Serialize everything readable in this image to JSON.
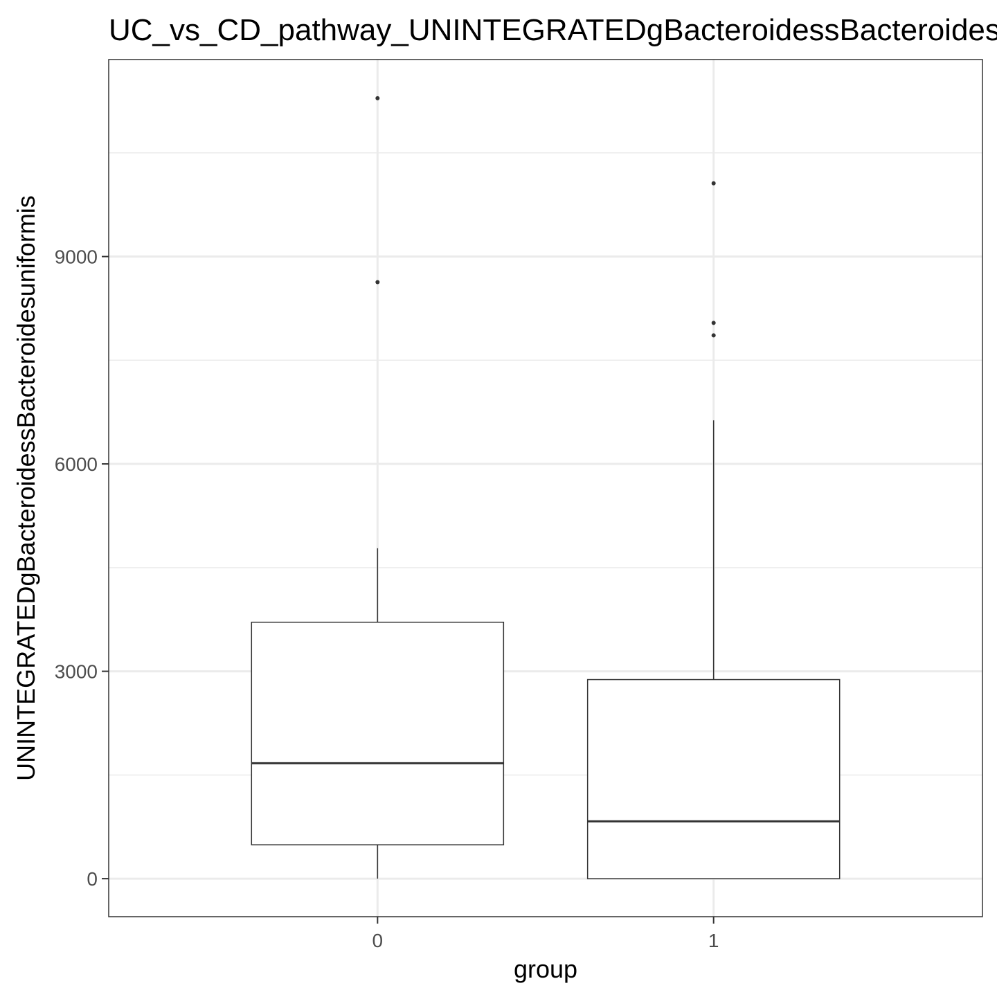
{
  "chart_data": {
    "type": "boxplot",
    "title": "UC_vs_CD_pathway_UNINTEGRATEDgBacteroidessBacteroidesuniformis",
    "xlabel": "group",
    "ylabel": "UNINTEGRATEDgBacteroidessBacteroidesuniformis",
    "ylim": [
      -550,
      11850
    ],
    "yticks": [
      0,
      3000,
      6000,
      9000
    ],
    "yminor": [
      1500,
      4500,
      7500,
      10500
    ],
    "grid": true,
    "categories": [
      "0",
      "1"
    ],
    "boxes": [
      {
        "group": "0",
        "lower_whisker": 0,
        "q1": 490,
        "median": 1670,
        "q3": 3710,
        "upper_whisker": 4780,
        "outliers": [
          8630,
          11290
        ]
      },
      {
        "group": "1",
        "lower_whisker": 0,
        "q1": 0,
        "median": 830,
        "q3": 2880,
        "upper_whisker": 6630,
        "outliers": [
          7860,
          8040,
          10060
        ]
      }
    ],
    "colors": {
      "box_fill": "#ffffff",
      "stroke": "#333333",
      "grid": "#ebebeb"
    }
  }
}
